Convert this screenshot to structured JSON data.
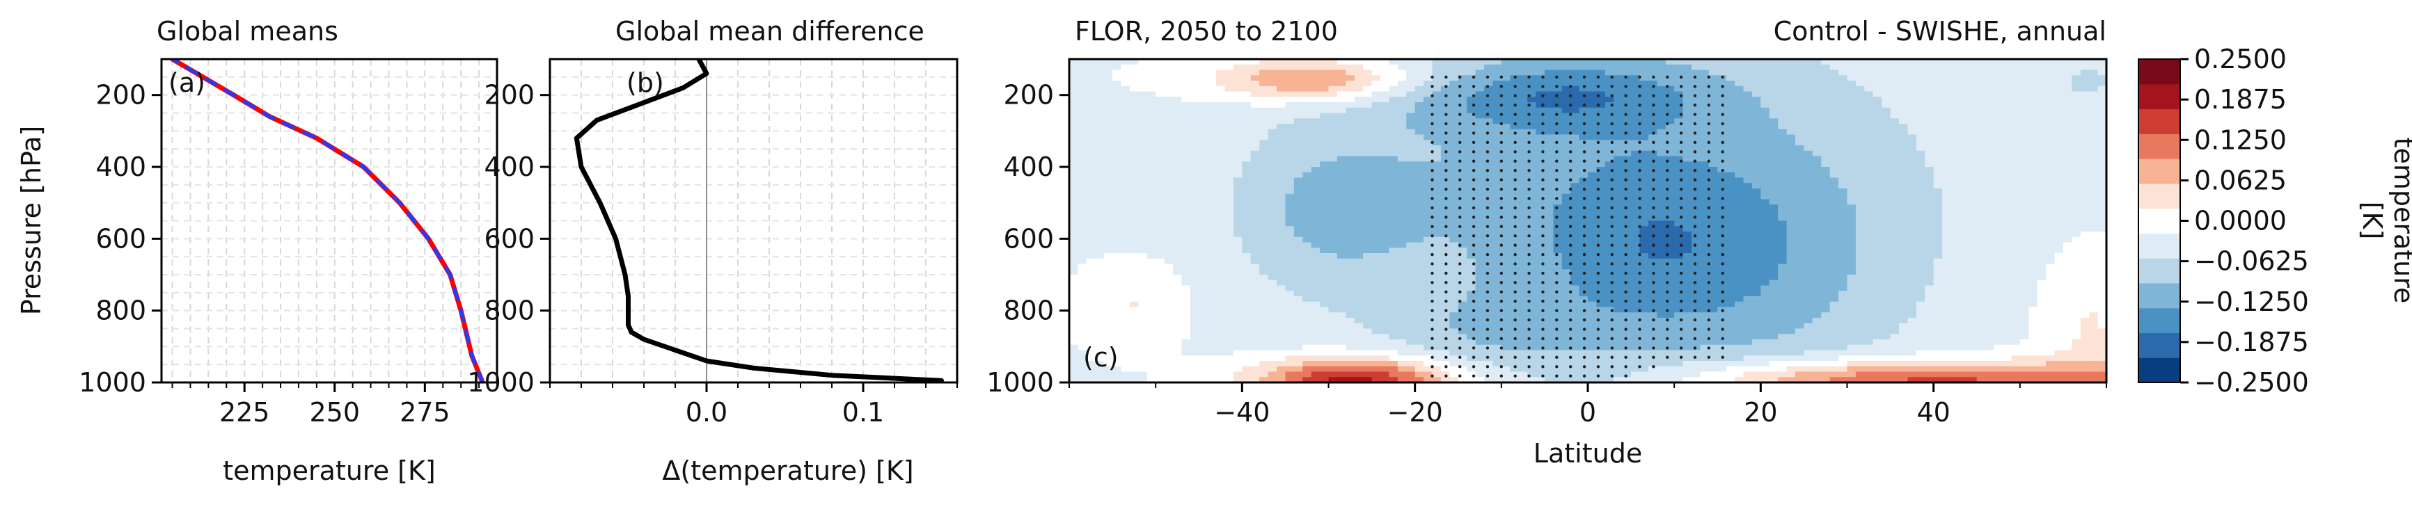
{
  "figure": {
    "panel_a": {
      "title": "Global means",
      "xlabel": "temperature [K]",
      "ylabel": "Pressure [hPa]",
      "tag": "(a)"
    },
    "panel_b": {
      "title": "Global mean difference",
      "xlabel": "Δ(temperature) [K]",
      "tag": "(b)"
    },
    "panel_c": {
      "title_left": "FLOR, 2050 to 2100",
      "title_right": "Control - SWISHE, annual",
      "xlabel": "Latitude",
      "tag": "(c)"
    },
    "colorbar": {
      "label_line1": "temperature",
      "label_line2": "[K]"
    }
  },
  "colors": {
    "control_line": "#ff0000",
    "swishe_line": "#1f3cff",
    "difference_line": "#000000",
    "cmap": [
      "#083e80",
      "#2b6aad",
      "#4b92c4",
      "#7fb5d6",
      "#b8d6e8",
      "#dfecf5",
      "#ffffff",
      "#fde3d5",
      "#f7b394",
      "#e9795e",
      "#cd3d34",
      "#a3141f",
      "#7a0a1a"
    ]
  },
  "chart_data": [
    {
      "type": "line",
      "title": "Global means",
      "xlabel": "temperature [K]",
      "ylabel": "Pressure [hPa]",
      "xlim": [
        202,
        295
      ],
      "ylim": [
        1000,
        100
      ],
      "xticks": [
        225,
        250,
        275
      ],
      "yticks": [
        200,
        400,
        600,
        800,
        1000
      ],
      "grid": true,
      "series": [
        {
          "style": "solid",
          "x": [
            205,
            222,
            232,
            245,
            258,
            268,
            276,
            282,
            285,
            288,
            291
          ],
          "y": [
            100,
            200,
            260,
            320,
            400,
            500,
            600,
            700,
            800,
            925,
            1000
          ]
        },
        {
          "style": "dashed",
          "x": [
            205,
            222,
            232,
            245,
            258,
            268,
            276,
            282,
            285,
            288,
            291
          ],
          "y": [
            100,
            200,
            260,
            320,
            400,
            500,
            600,
            700,
            800,
            925,
            1000
          ]
        }
      ]
    },
    {
      "type": "line",
      "title": "Global mean difference",
      "xlabel": "Δ(temperature) [K]",
      "xlim": [
        -0.1,
        0.16
      ],
      "ylim": [
        1000,
        100
      ],
      "xticks": [
        0.0,
        0.1
      ],
      "yticks": [
        200,
        400,
        600,
        800,
        1000
      ],
      "grid": true,
      "series": [
        {
          "x": [
            -0.005,
            0.0,
            -0.015,
            -0.07,
            -0.083,
            -0.08,
            -0.068,
            -0.058,
            -0.052,
            -0.05,
            -0.05,
            -0.048,
            -0.04,
            -0.02,
            0.0,
            0.03,
            0.08,
            0.15
          ],
          "y": [
            100,
            140,
            180,
            270,
            320,
            400,
            500,
            600,
            700,
            760,
            840,
            860,
            880,
            910,
            940,
            960,
            980,
            995
          ]
        }
      ]
    },
    {
      "type": "heatmap",
      "title": "FLOR, 2050 to 2100",
      "subtitle": "Control - SWISHE, annual",
      "xlabel": "Latitude",
      "xlim": [
        -60,
        60
      ],
      "ylim": [
        1000,
        100
      ],
      "xticks": [
        -40,
        -20,
        0,
        20,
        40
      ],
      "yticks": [
        200,
        400,
        600,
        800,
        1000
      ],
      "levels": [
        -0.25,
        -0.2083,
        -0.1667,
        -0.125,
        -0.0833,
        -0.0417,
        0.0,
        0.0417,
        0.0833,
        0.125,
        0.1667,
        0.2083,
        0.25
      ],
      "colorbar_ticks": [
        0.25,
        0.1875,
        0.125,
        0.0625,
        0.0,
        -0.0625,
        -0.125,
        -0.1875,
        -0.25
      ],
      "colorbar_ticklabels": [
        "0.2500",
        "0.1875",
        "0.1250",
        "0.0625",
        "0.0000",
        "−0.0625",
        "−0.1250",
        "−0.1875",
        "−0.2500"
      ],
      "stippling": "significant region, approximately latitude -18 to 15, 150 to 1000 hPa",
      "features": [
        {
          "lat": -12,
          "p": 190,
          "value": -0.2
        },
        {
          "lat": -2,
          "p": 200,
          "value": -0.17
        },
        {
          "lat": 3,
          "p": 650,
          "value": -0.12
        },
        {
          "lat": -10,
          "p": 860,
          "value": -0.13
        },
        {
          "lat": -30,
          "p": 170,
          "value": 0.11
        },
        {
          "lat": -26,
          "p": 990,
          "value": 0.22
        },
        {
          "lat": 40,
          "p": 990,
          "value": 0.2
        },
        {
          "lat": -52,
          "p": 780,
          "value": 0.05
        },
        {
          "lat": 58,
          "p": 850,
          "value": 0.05
        }
      ]
    }
  ]
}
